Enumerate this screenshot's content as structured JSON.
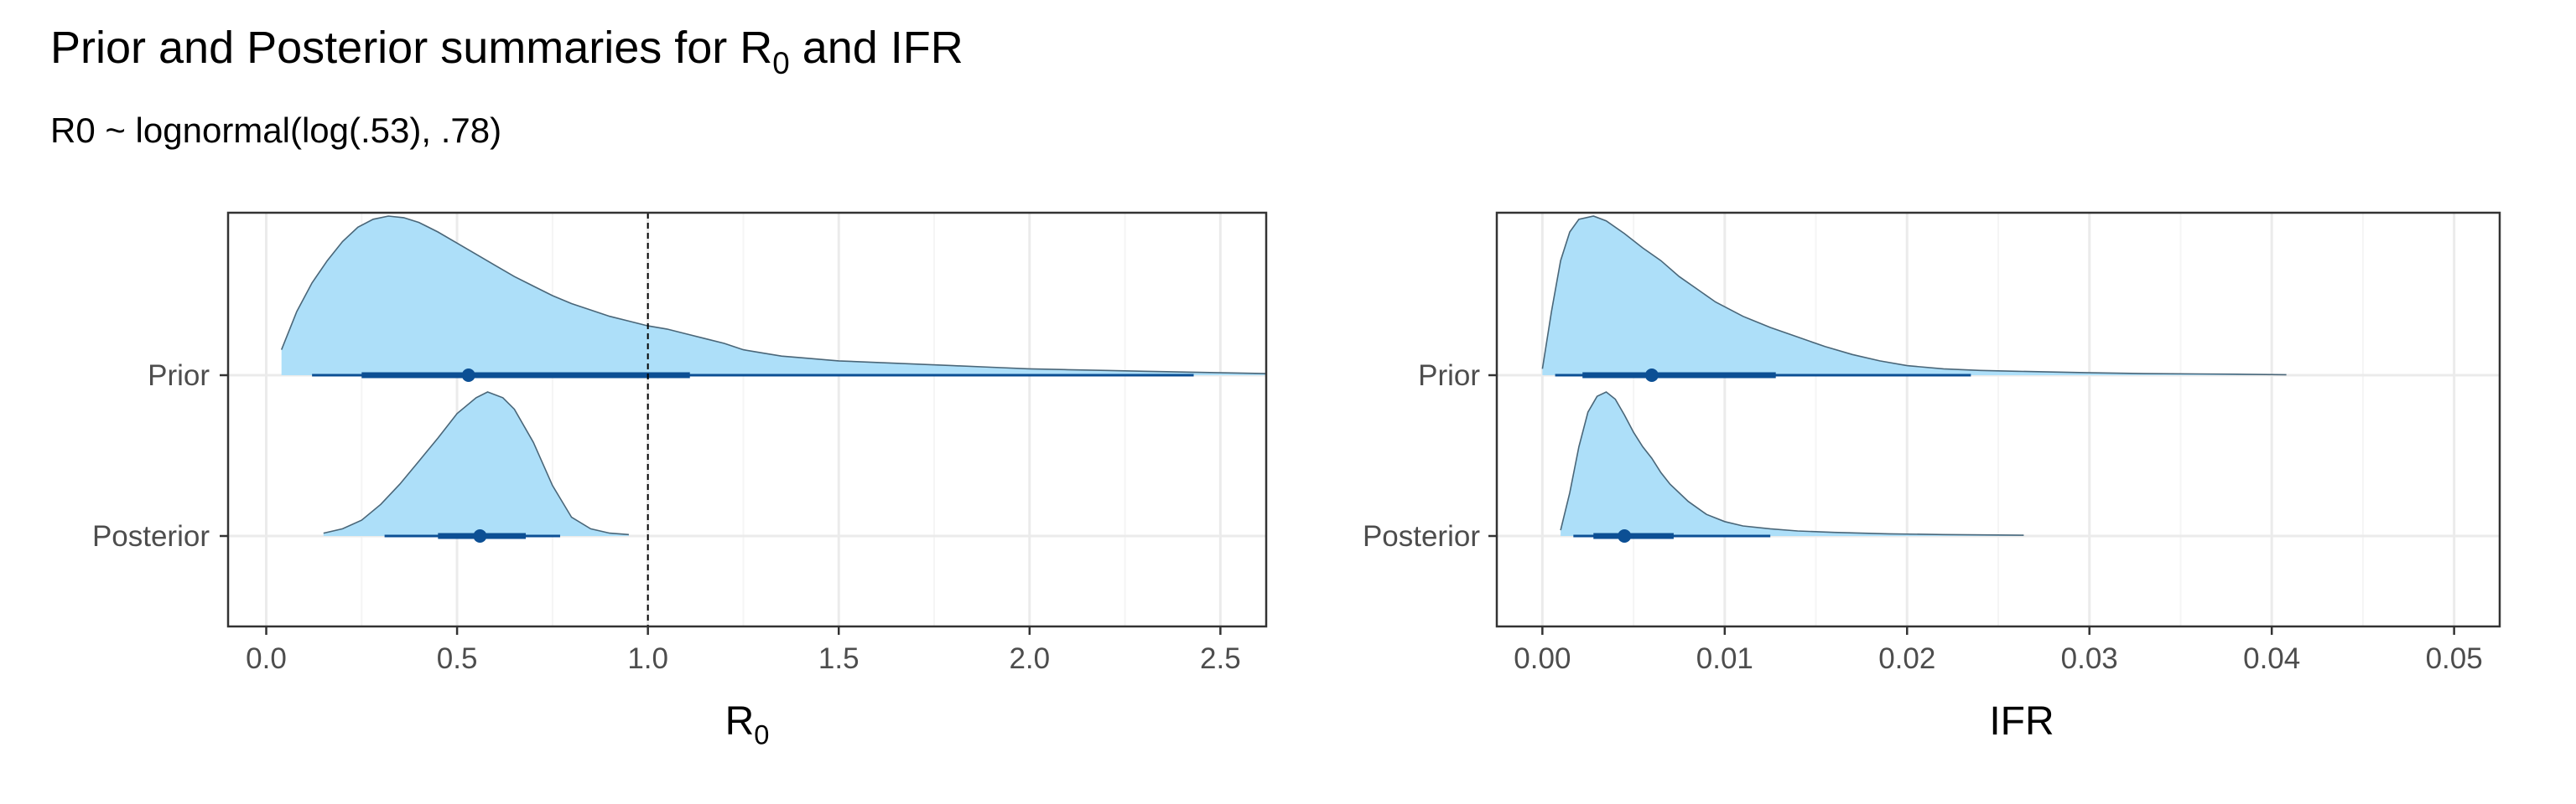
{
  "title_pre": "Prior and Posterior summaries for R",
  "title_sub": "0",
  "title_post": " and IFR",
  "subtitle": "R0 ~ lognormal(log(.53), .78)",
  "colors": {
    "density_fill": "#addff9",
    "density_line": "#4a6678",
    "interval": "#0c4f94",
    "grid_major": "#ebebeb",
    "grid_minor": "#f5f5f5",
    "panel_border": "#333333"
  },
  "chart_data": [
    {
      "type": "density_interval",
      "xlabel_main": "R",
      "xlabel_sub": "0",
      "xlim": [
        -0.1,
        2.62
      ],
      "x_ticks": [
        0.0,
        0.5,
        1.0,
        1.5,
        2.0,
        2.5
      ],
      "x_tick_labels": [
        "0.0",
        "0.5",
        "1.0",
        "1.5",
        "2.0",
        "2.5"
      ],
      "categories": [
        "Prior",
        "Posterior"
      ],
      "reference_line": 1.0,
      "series": [
        {
          "category": "Prior",
          "density": [
            [
              0.04,
              0.16
            ],
            [
              0.08,
              0.4
            ],
            [
              0.12,
              0.58
            ],
            [
              0.16,
              0.72
            ],
            [
              0.2,
              0.84
            ],
            [
              0.24,
              0.93
            ],
            [
              0.28,
              0.98
            ],
            [
              0.32,
              1.0
            ],
            [
              0.36,
              0.99
            ],
            [
              0.4,
              0.96
            ],
            [
              0.45,
              0.9
            ],
            [
              0.5,
              0.83
            ],
            [
              0.55,
              0.76
            ],
            [
              0.6,
              0.69
            ],
            [
              0.65,
              0.62
            ],
            [
              0.7,
              0.56
            ],
            [
              0.75,
              0.5
            ],
            [
              0.8,
              0.45
            ],
            [
              0.85,
              0.41
            ],
            [
              0.9,
              0.37
            ],
            [
              0.95,
              0.34
            ],
            [
              1.0,
              0.31
            ],
            [
              1.05,
              0.29
            ],
            [
              1.1,
              0.26
            ],
            [
              1.15,
              0.23
            ],
            [
              1.2,
              0.2
            ],
            [
              1.25,
              0.16
            ],
            [
              1.3,
              0.14
            ],
            [
              1.35,
              0.12
            ],
            [
              1.4,
              0.11
            ],
            [
              1.5,
              0.09
            ],
            [
              1.6,
              0.08
            ],
            [
              1.7,
              0.07
            ],
            [
              1.8,
              0.06
            ],
            [
              1.9,
              0.05
            ],
            [
              2.0,
              0.04
            ],
            [
              2.1,
              0.035
            ],
            [
              2.2,
              0.03
            ],
            [
              2.3,
              0.025
            ],
            [
              2.4,
              0.02
            ],
            [
              2.5,
              0.015
            ],
            [
              2.62,
              0.01
            ]
          ],
          "point": 0.53,
          "inner": [
            0.25,
            1.11
          ],
          "outer": [
            0.12,
            2.43
          ]
        },
        {
          "category": "Posterior",
          "density": [
            [
              0.15,
              0.02
            ],
            [
              0.2,
              0.05
            ],
            [
              0.25,
              0.11
            ],
            [
              0.3,
              0.22
            ],
            [
              0.35,
              0.36
            ],
            [
              0.4,
              0.52
            ],
            [
              0.45,
              0.68
            ],
            [
              0.5,
              0.85
            ],
            [
              0.55,
              0.96
            ],
            [
              0.58,
              1.0
            ],
            [
              0.62,
              0.96
            ],
            [
              0.65,
              0.88
            ],
            [
              0.7,
              0.65
            ],
            [
              0.75,
              0.35
            ],
            [
              0.8,
              0.13
            ],
            [
              0.85,
              0.05
            ],
            [
              0.9,
              0.02
            ],
            [
              0.95,
              0.01
            ]
          ],
          "point": 0.56,
          "inner": [
            0.45,
            0.68
          ],
          "outer": [
            0.31,
            0.77
          ]
        }
      ]
    },
    {
      "type": "density_interval",
      "xlabel_main": "IFR",
      "xlabel_sub": "",
      "xlim": [
        -0.0025,
        0.0525
      ],
      "x_ticks": [
        0.0,
        0.01,
        0.02,
        0.03,
        0.04,
        0.05
      ],
      "x_tick_labels": [
        "0.00",
        "0.01",
        "0.02",
        "0.03",
        "0.04",
        "0.05"
      ],
      "categories": [
        "Prior",
        "Posterior"
      ],
      "reference_line": null,
      "series": [
        {
          "category": "Prior",
          "density": [
            [
              0.0,
              0.04
            ],
            [
              0.0005,
              0.4
            ],
            [
              0.001,
              0.72
            ],
            [
              0.0015,
              0.9
            ],
            [
              0.002,
              0.98
            ],
            [
              0.0028,
              1.0
            ],
            [
              0.0035,
              0.97
            ],
            [
              0.0045,
              0.89
            ],
            [
              0.0055,
              0.8
            ],
            [
              0.0065,
              0.72
            ],
            [
              0.0075,
              0.62
            ],
            [
              0.0085,
              0.54
            ],
            [
              0.0095,
              0.46
            ],
            [
              0.011,
              0.37
            ],
            [
              0.0125,
              0.3
            ],
            [
              0.014,
              0.24
            ],
            [
              0.0155,
              0.18
            ],
            [
              0.017,
              0.13
            ],
            [
              0.0185,
              0.09
            ],
            [
              0.02,
              0.06
            ],
            [
              0.022,
              0.04
            ],
            [
              0.024,
              0.03
            ],
            [
              0.026,
              0.025
            ],
            [
              0.028,
              0.02
            ],
            [
              0.03,
              0.015
            ],
            [
              0.033,
              0.01
            ],
            [
              0.036,
              0.008
            ],
            [
              0.0385,
              0.006
            ],
            [
              0.0408,
              0.003
            ]
          ],
          "point": 0.006,
          "inner": [
            0.0022,
            0.0128
          ],
          "outer": [
            0.0007,
            0.0235
          ]
        },
        {
          "category": "Posterior",
          "density": [
            [
              0.001,
              0.04
            ],
            [
              0.0015,
              0.3
            ],
            [
              0.002,
              0.62
            ],
            [
              0.0025,
              0.86
            ],
            [
              0.003,
              0.97
            ],
            [
              0.0035,
              1.0
            ],
            [
              0.004,
              0.95
            ],
            [
              0.0045,
              0.84
            ],
            [
              0.005,
              0.72
            ],
            [
              0.0055,
              0.62
            ],
            [
              0.006,
              0.54
            ],
            [
              0.0065,
              0.44
            ],
            [
              0.007,
              0.36
            ],
            [
              0.008,
              0.24
            ],
            [
              0.009,
              0.15
            ],
            [
              0.01,
              0.1
            ],
            [
              0.011,
              0.07
            ],
            [
              0.0125,
              0.05
            ],
            [
              0.014,
              0.035
            ],
            [
              0.016,
              0.025
            ],
            [
              0.019,
              0.015
            ],
            [
              0.022,
              0.01
            ],
            [
              0.0264,
              0.005
            ]
          ],
          "point": 0.0045,
          "inner": [
            0.0028,
            0.0072
          ],
          "outer": [
            0.0017,
            0.0125
          ]
        }
      ]
    }
  ]
}
